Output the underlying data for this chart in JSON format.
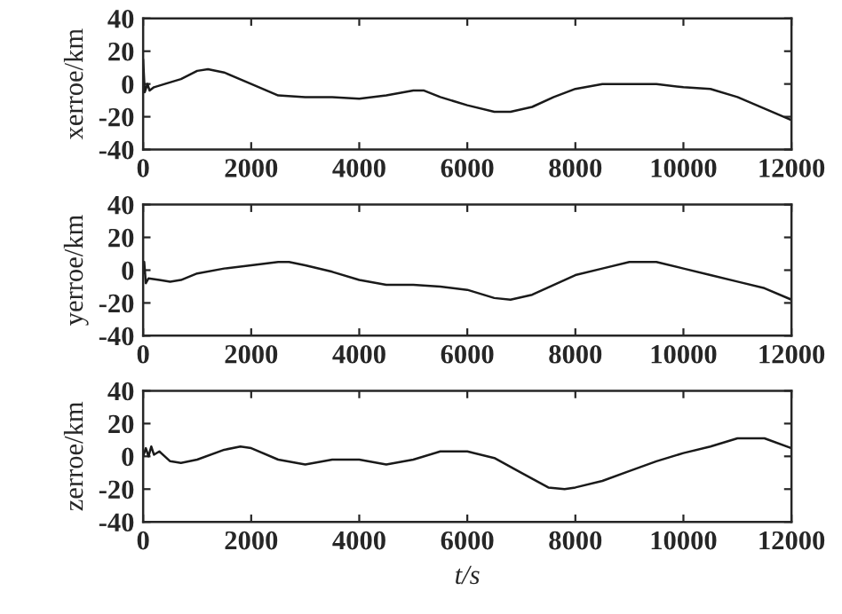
{
  "chart_data": [
    {
      "type": "line",
      "ylabel": "xerroe/km",
      "xlim": [
        0,
        12000
      ],
      "xticks": [
        0,
        2000,
        4000,
        6000,
        8000,
        10000,
        12000
      ],
      "ylim": [
        -40,
        40
      ],
      "yticks": [
        -40,
        -20,
        0,
        20,
        40
      ],
      "grid": false,
      "legend": false,
      "series": [
        {
          "color": "#1a1a1a",
          "x": [
            0,
            30,
            80,
            120,
            200,
            400,
            700,
            1000,
            1200,
            1500,
            2000,
            2500,
            3000,
            3500,
            4000,
            4500,
            5000,
            5200,
            5500,
            6000,
            6500,
            6800,
            7200,
            7600,
            8000,
            8500,
            9000,
            9500,
            10000,
            10500,
            11000,
            11500,
            12000
          ],
          "values": [
            15,
            -5,
            0,
            -4,
            -2,
            0,
            3,
            8,
            9,
            7,
            0,
            -7,
            -8,
            -8,
            -9,
            -7,
            -4,
            -4,
            -8,
            -13,
            -17,
            -17,
            -14,
            -8,
            -3,
            0,
            0,
            0,
            -2,
            -3,
            -8,
            -15,
            -22
          ]
        }
      ]
    },
    {
      "type": "line",
      "ylabel": "yerroe/km",
      "xlim": [
        0,
        12000
      ],
      "xticks": [
        0,
        2000,
        4000,
        6000,
        8000,
        10000,
        12000
      ],
      "ylim": [
        -40,
        40
      ],
      "yticks": [
        -40,
        -20,
        0,
        20,
        40
      ],
      "grid": false,
      "legend": false,
      "series": [
        {
          "color": "#1a1a1a",
          "x": [
            0,
            20,
            50,
            100,
            300,
            500,
            700,
            1000,
            1500,
            2000,
            2500,
            2700,
            3000,
            3500,
            4000,
            4500,
            5000,
            5500,
            6000,
            6500,
            6800,
            7200,
            7600,
            8000,
            8500,
            9000,
            9500,
            10000,
            10500,
            11000,
            11500,
            12000
          ],
          "values": [
            -2,
            5,
            -8,
            -5,
            -6,
            -7,
            -6,
            -2,
            1,
            3,
            5,
            5,
            3,
            -1,
            -6,
            -9,
            -9,
            -10,
            -12,
            -17,
            -18,
            -15,
            -9,
            -3,
            1,
            5,
            5,
            1,
            -3,
            -7,
            -11,
            -18
          ]
        }
      ]
    },
    {
      "type": "line",
      "ylabel": "zerroe/km",
      "xlabel": "t/s",
      "xlim": [
        0,
        12000
      ],
      "xticks": [
        0,
        2000,
        4000,
        6000,
        8000,
        10000,
        12000
      ],
      "ylim": [
        -40,
        40
      ],
      "yticks": [
        -40,
        -20,
        0,
        20,
        40
      ],
      "grid": false,
      "legend": false,
      "series": [
        {
          "color": "#1a1a1a",
          "x": [
            0,
            50,
            100,
            150,
            200,
            300,
            500,
            700,
            1000,
            1500,
            1800,
            2000,
            2500,
            3000,
            3500,
            4000,
            4500,
            5000,
            5500,
            6000,
            6500,
            7000,
            7500,
            7800,
            8000,
            8500,
            9000,
            9500,
            10000,
            10500,
            11000,
            11500,
            12000
          ],
          "values": [
            0,
            5,
            0,
            6,
            1,
            3,
            -3,
            -4,
            -2,
            4,
            6,
            5,
            -2,
            -5,
            -2,
            -2,
            -5,
            -2,
            3,
            3,
            -1,
            -10,
            -19,
            -20,
            -19,
            -15,
            -9,
            -3,
            2,
            6,
            11,
            11,
            5
          ]
        }
      ]
    }
  ]
}
